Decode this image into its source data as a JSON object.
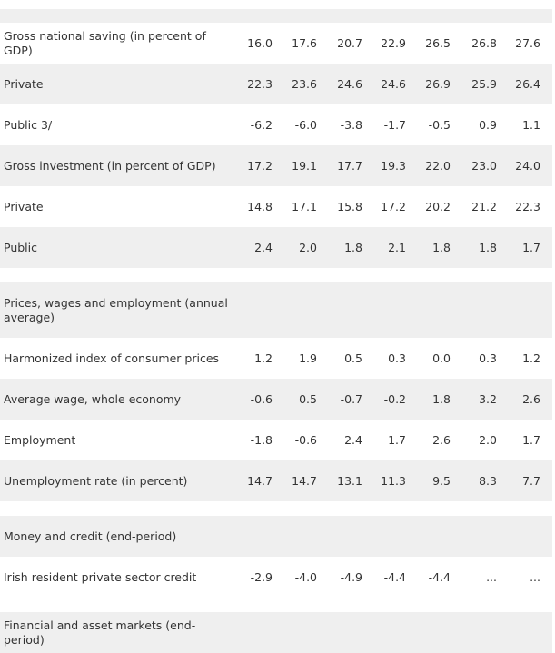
{
  "rows": [
    {
      "label": "Gross national saving (in percent of GDP)",
      "values": [
        "16.0",
        "17.6",
        "20.7",
        "22.9",
        "26.5",
        "26.8",
        "27.6"
      ]
    },
    {
      "label": "Private",
      "values": [
        "22.3",
        "23.6",
        "24.6",
        "24.6",
        "26.9",
        "25.9",
        "26.4"
      ]
    },
    {
      "label": "Public 3/",
      "values": [
        "-6.2",
        "-6.0",
        "-3.8",
        "-1.7",
        "-0.5",
        "0.9",
        "1.1"
      ]
    },
    {
      "label": "Gross investment (in percent of GDP)",
      "values": [
        "17.2",
        "19.1",
        "17.7",
        "19.3",
        "22.0",
        "23.0",
        "24.0"
      ]
    },
    {
      "label": "Private",
      "values": [
        "14.8",
        "17.1",
        "15.8",
        "17.2",
        "20.2",
        "21.2",
        "22.3"
      ]
    },
    {
      "label": "Public",
      "values": [
        "2.4",
        "2.0",
        "1.8",
        "2.1",
        "1.8",
        "1.8",
        "1.7"
      ]
    },
    {
      "label": "Prices, wages and employment (annual average)",
      "values": []
    },
    {
      "label": "Harmonized index of consumer prices",
      "values": [
        "1.2",
        "1.9",
        "0.5",
        "0.3",
        "0.0",
        "0.3",
        "1.2"
      ]
    },
    {
      "label": "Average wage, whole economy",
      "values": [
        "-0.6",
        "0.5",
        "-0.7",
        "-0.2",
        "1.8",
        "3.2",
        "2.6"
      ]
    },
    {
      "label": "Employment",
      "values": [
        "-1.8",
        "-0.6",
        "2.4",
        "1.7",
        "2.6",
        "2.0",
        "1.7"
      ]
    },
    {
      "label": "Unemployment rate (in percent)",
      "values": [
        "14.7",
        "14.7",
        "13.1",
        "11.3",
        "9.5",
        "8.3",
        "7.7"
      ]
    },
    {
      "label": "Money and credit (end-period)",
      "values": []
    },
    {
      "label": "Irish resident private sector credit",
      "values": [
        "-2.9",
        "-4.0",
        "-4.9",
        "-4.4",
        "-4.4",
        "...",
        "..."
      ]
    },
    {
      "label": "Financial and asset markets (end-period)",
      "values": []
    }
  ]
}
